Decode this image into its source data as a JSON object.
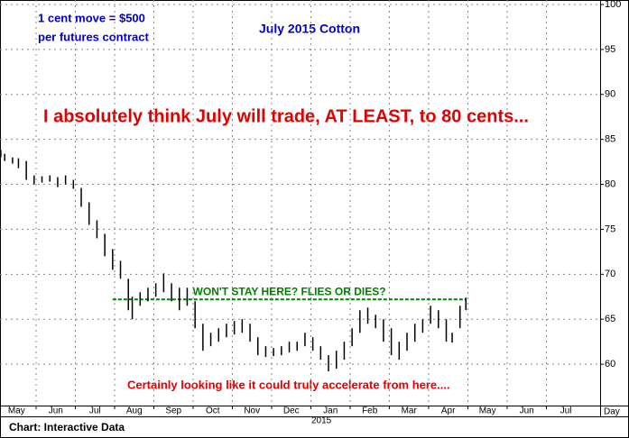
{
  "chart_data": {
    "type": "hilo",
    "title": "July 2015 Cotton",
    "subtitle": [
      "1 cent move = $500",
      "per futures contract"
    ],
    "headline": "I absolutely think July will trade, AT LEAST, to 80 cents...",
    "footer_note": "Certainly looking like it could truly accelerate from here....",
    "source": "Chart: Interactive Data",
    "x_label": "Day",
    "year_label": "2015",
    "color": "#000000",
    "ylim": [
      55.4,
      100.5
    ],
    "yticks": [
      60,
      65,
      70,
      75,
      80,
      85,
      90,
      95,
      100
    ],
    "xlim": [
      0.08,
      15.37
    ],
    "xticks": [
      {
        "value": 0,
        "label": "May"
      },
      {
        "value": 1,
        "label": "Jun"
      },
      {
        "value": 2,
        "label": "Jul"
      },
      {
        "value": 3,
        "label": "Aug"
      },
      {
        "value": 4,
        "label": "Sep"
      },
      {
        "value": 5,
        "label": "Oct"
      },
      {
        "value": 6,
        "label": "Nov"
      },
      {
        "value": 7,
        "label": "Dec"
      },
      {
        "value": 8,
        "label": "Jan"
      },
      {
        "value": 9,
        "label": "Feb"
      },
      {
        "value": 10,
        "label": "Mar"
      },
      {
        "value": 11,
        "label": "Apr"
      },
      {
        "value": 12,
        "label": "May"
      },
      {
        "value": 13,
        "label": "Jun"
      },
      {
        "value": 14,
        "label": "Jul"
      }
    ],
    "grid": true,
    "x": [
      0.1,
      0.2,
      0.4,
      0.55,
      0.75,
      0.95,
      1.15,
      1.35,
      1.55,
      1.75,
      1.95,
      2.15,
      2.35,
      2.55,
      2.75,
      2.95,
      3.15,
      3.35,
      3.45,
      3.65,
      3.85,
      4.05,
      4.25,
      4.45,
      4.65,
      4.85,
      5.05,
      5.25,
      5.45,
      5.65,
      5.85,
      6.05,
      6.25,
      6.45,
      6.65,
      6.85,
      7.05,
      7.25,
      7.45,
      7.65,
      7.85,
      8.05,
      8.25,
      8.45,
      8.65,
      8.85,
      9.05,
      9.25,
      9.45,
      9.65,
      9.85,
      10.05,
      10.25,
      10.45,
      10.65,
      10.85,
      11.05,
      11.25,
      11.45,
      11.6,
      11.8,
      11.95
    ],
    "high": [
      83.8,
      83.4,
      83.0,
      82.9,
      82.6,
      81.0,
      80.9,
      81.0,
      80.8,
      81.0,
      80.5,
      79.6,
      78.0,
      76.0,
      74.5,
      72.8,
      71.5,
      69.5,
      67.5,
      68.0,
      68.5,
      69.0,
      70.1,
      69.0,
      68.5,
      68.5,
      67.0,
      64.5,
      63.5,
      64.0,
      64.5,
      64.8,
      65.0,
      64.5,
      63.0,
      62.0,
      61.8,
      62.0,
      62.5,
      62.5,
      63.5,
      63.0,
      62.0,
      61.0,
      61.5,
      62.5,
      64.0,
      66.0,
      66.3,
      65.5,
      65.0,
      64.0,
      62.5,
      63.5,
      64.5,
      65.0,
      66.5,
      66.0,
      65.0,
      63.5,
      66.5,
      67.4
    ],
    "low": [
      83.0,
      82.6,
      82.3,
      81.8,
      80.5,
      80.0,
      80.2,
      80.3,
      79.7,
      80.0,
      79.5,
      77.5,
      75.5,
      74.0,
      72.0,
      70.5,
      69.5,
      66.0,
      65.0,
      66.5,
      67.0,
      67.5,
      68.0,
      67.0,
      66.0,
      66.5,
      64.0,
      61.5,
      62.0,
      62.5,
      63.0,
      63.3,
      63.5,
      62.5,
      61.0,
      60.8,
      60.9,
      61.0,
      61.3,
      61.5,
      62.0,
      61.5,
      60.5,
      59.2,
      59.5,
      60.5,
      62.0,
      63.5,
      64.5,
      64.0,
      62.5,
      61.0,
      60.5,
      61.5,
      62.5,
      63.5,
      64.5,
      64.0,
      62.5,
      62.4,
      64.0,
      66.0
    ],
    "annotation_line": {
      "label": "WON'T STAY HERE? FLIES OR DIES?",
      "value": 67.2,
      "x": [
        2.95,
        11.95
      ],
      "color": "#008000"
    }
  }
}
